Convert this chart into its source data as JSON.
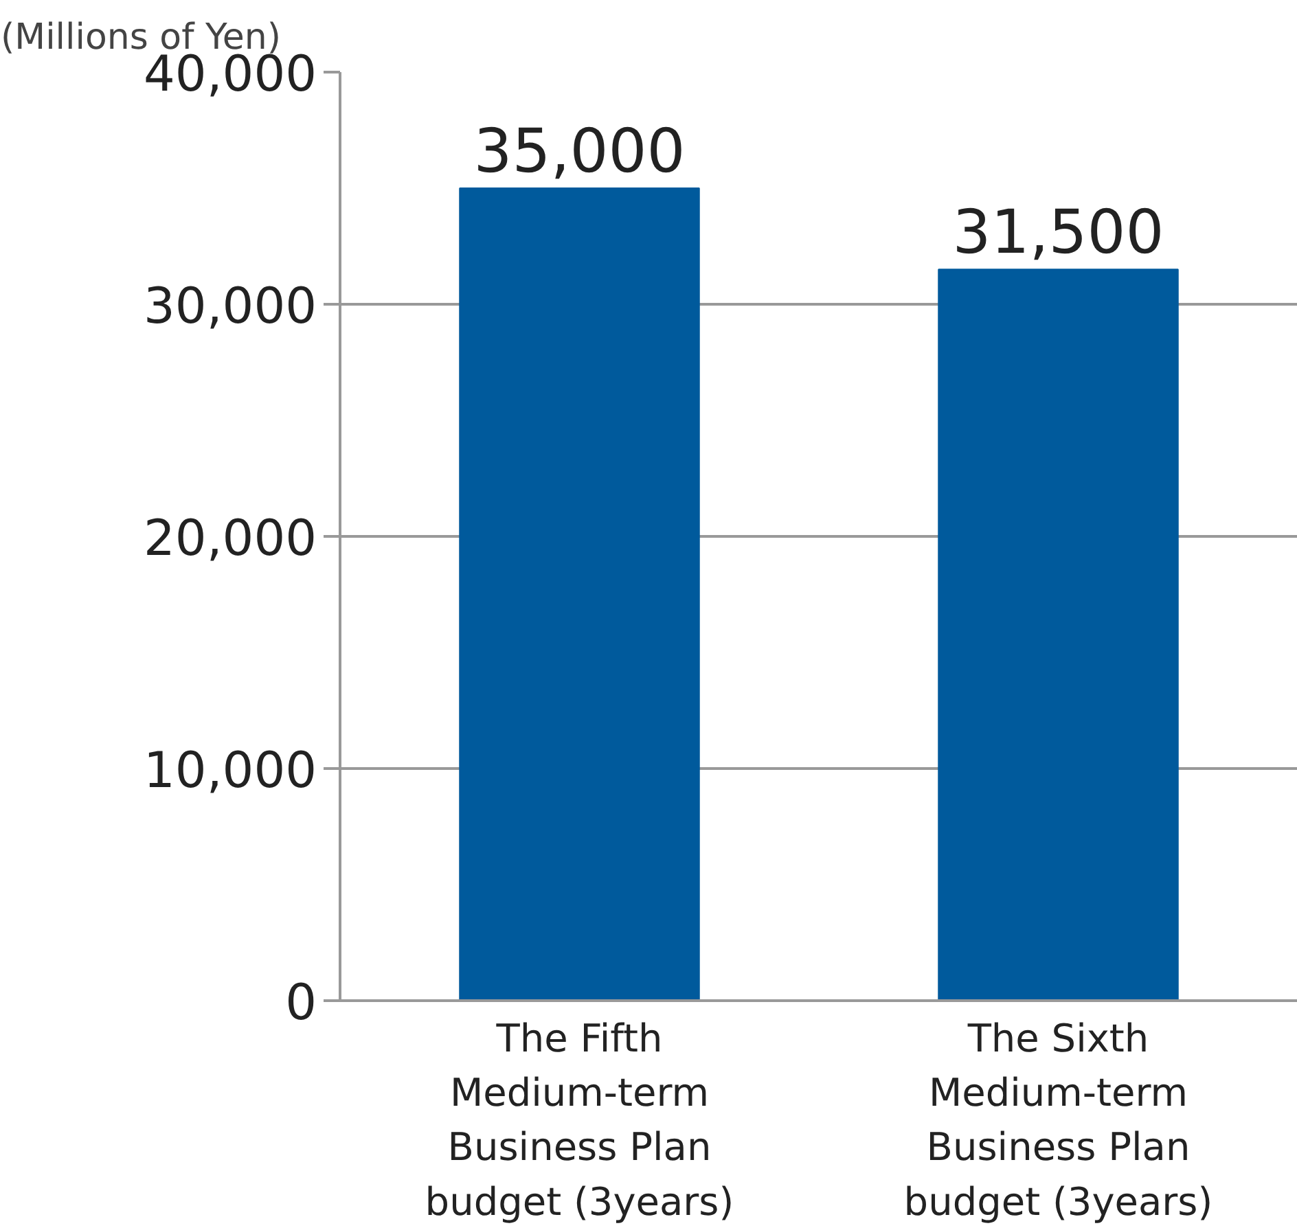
{
  "chart_data": {
    "type": "bar",
    "ylabel": "(Millions of Yen)",
    "categories": [
      "The Fifth\nMedium-term\nBusiness Plan\nbudget (3years)",
      "The Sixth\nMedium-term\nBusiness Plan\nbudget (3years)"
    ],
    "values": [
      35000,
      31500
    ],
    "color": "#005a9c",
    "ylim": [
      0,
      40000
    ],
    "yticks": [
      {
        "value": 0,
        "label": "0"
      },
      {
        "value": 10000,
        "label": "10,000"
      },
      {
        "value": 20000,
        "label": "20,000"
      },
      {
        "value": 30000,
        "label": "30,000"
      },
      {
        "value": 40000,
        "label": "40,000"
      }
    ],
    "value_labels": [
      "35,000",
      "31,500"
    ],
    "grid": "y"
  }
}
